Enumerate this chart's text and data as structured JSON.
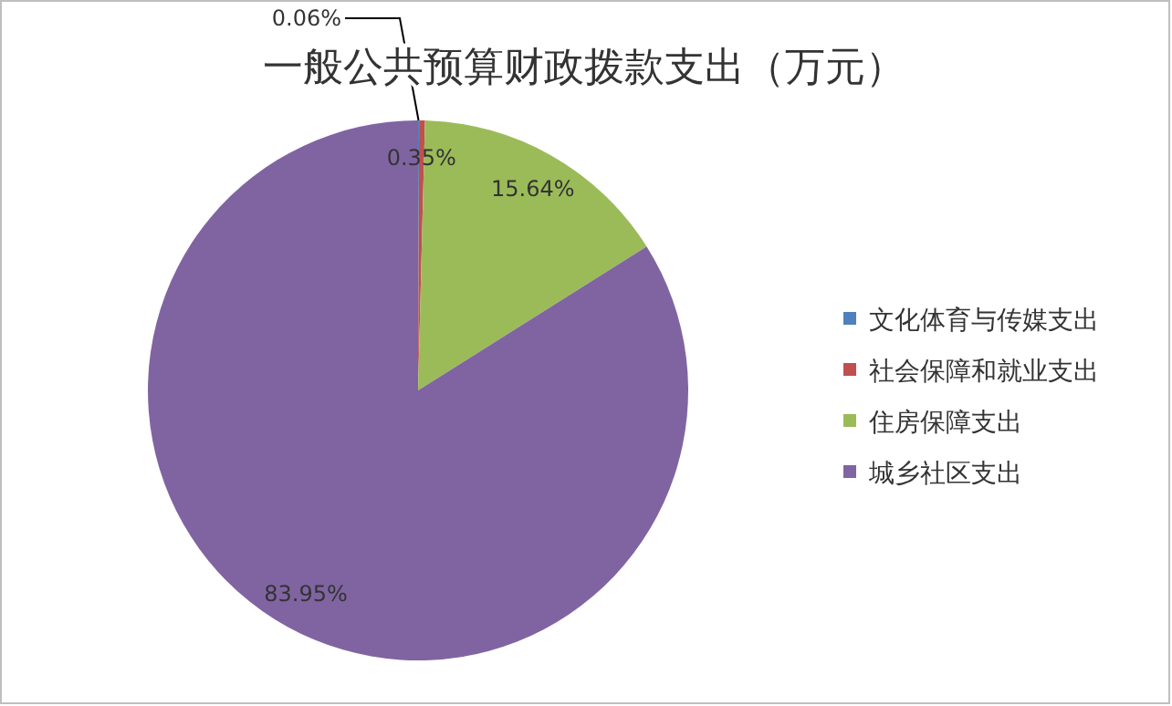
{
  "chart_data": {
    "type": "pie",
    "title": "一般公共预算财政拨款支出（万元）",
    "categories": [
      "文化体育与传媒支出",
      "社会保障和就业支出",
      "住房保障支出",
      "城乡社区支出"
    ],
    "values": [
      0.06,
      0.35,
      15.64,
      83.95
    ],
    "colors": [
      "#4f81bd",
      "#c0504d",
      "#9bbb59",
      "#8064a2"
    ],
    "value_labels": [
      "0.06%",
      "0.35%",
      "15.64%",
      "83.95%"
    ],
    "legend": "right"
  }
}
